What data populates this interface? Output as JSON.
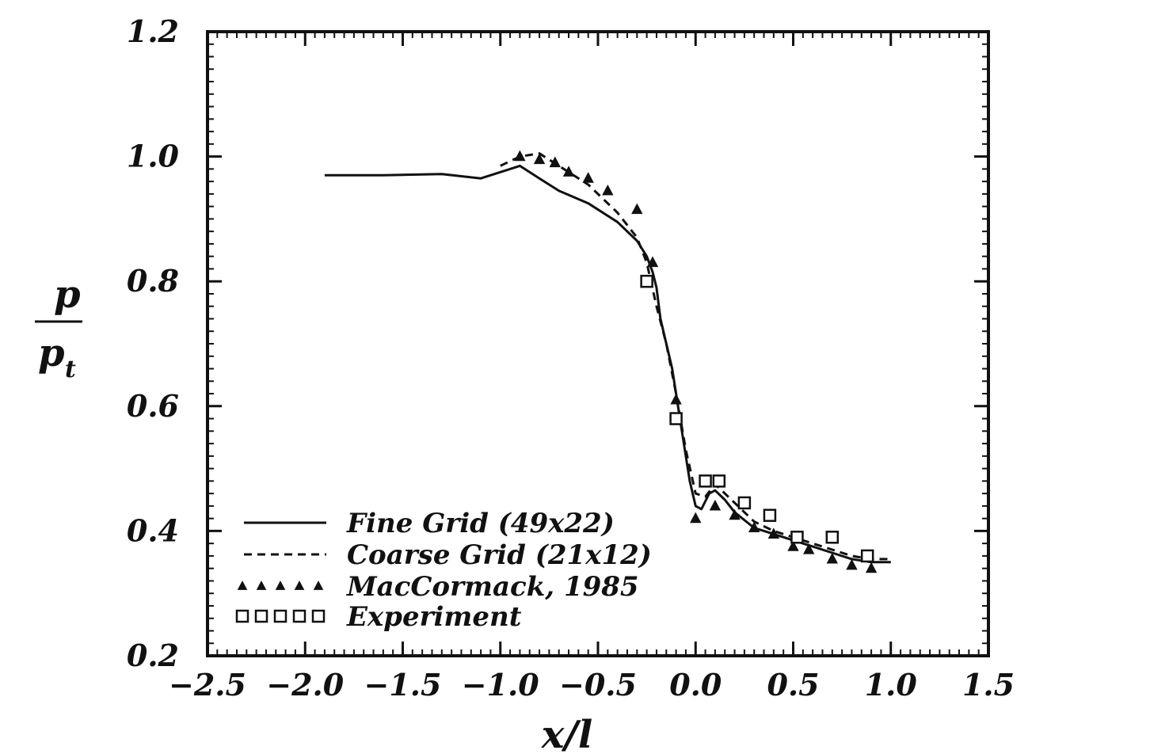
{
  "chart_data": {
    "type": "line",
    "title": "",
    "xlabel": "x/l",
    "ylabel_numerator": "p",
    "ylabel_denominator": "p",
    "ylabel_denominator_subscript": "t",
    "xlim": [
      -2.5,
      1.5
    ],
    "ylim": [
      0.2,
      1.2
    ],
    "xticks": [
      -2.5,
      -2.0,
      -1.5,
      -1.0,
      -0.5,
      0.0,
      0.5,
      1.0,
      1.5
    ],
    "xtick_labels": [
      "−2.5",
      "−2.0",
      "−1.5",
      "−1.0",
      "−0.5",
      "0.0",
      "0.5",
      "1.0",
      "1.5"
    ],
    "yticks": [
      0.2,
      0.4,
      0.6,
      0.8,
      1.0,
      1.2
    ],
    "ytick_labels": [
      "0.2",
      "0.4",
      "0.6",
      "0.8",
      "1.0",
      "1.2"
    ],
    "grid": false,
    "legend_position": "bottom-left",
    "series": [
      {
        "name": "Fine Grid (49x22)",
        "style": "solid",
        "x": [
          -1.9,
          -1.6,
          -1.3,
          -1.1,
          -1.0,
          -0.9,
          -0.8,
          -0.7,
          -0.55,
          -0.4,
          -0.3,
          -0.25,
          -0.22,
          -0.2,
          -0.18,
          -0.15,
          -0.12,
          -0.1,
          -0.08,
          -0.05,
          -0.03,
          0.0,
          0.03,
          0.07,
          0.1,
          0.15,
          0.2,
          0.3,
          0.4,
          0.5,
          0.6,
          0.7,
          0.8,
          0.9,
          1.0
        ],
        "y": [
          0.97,
          0.97,
          0.972,
          0.965,
          0.975,
          0.985,
          0.965,
          0.945,
          0.925,
          0.895,
          0.865,
          0.84,
          0.815,
          0.79,
          0.74,
          0.7,
          0.66,
          0.62,
          0.58,
          0.52,
          0.48,
          0.44,
          0.435,
          0.46,
          0.465,
          0.45,
          0.43,
          0.405,
          0.395,
          0.385,
          0.375,
          0.365,
          0.355,
          0.35,
          0.35
        ]
      },
      {
        "name": "Coarse Grid (21x12)",
        "style": "dashed",
        "x": [
          -1.0,
          -0.9,
          -0.8,
          -0.7,
          -0.55,
          -0.4,
          -0.3,
          -0.25,
          -0.2,
          -0.15,
          -0.1,
          -0.05,
          0.0,
          0.05,
          0.1,
          0.2,
          0.3,
          0.4,
          0.5,
          0.6,
          0.7,
          0.8,
          0.9,
          1.0
        ],
        "y": [
          0.985,
          1.0,
          1.005,
          0.985,
          0.955,
          0.91,
          0.87,
          0.83,
          0.76,
          0.7,
          0.62,
          0.53,
          0.46,
          0.455,
          0.475,
          0.445,
          0.415,
          0.4,
          0.39,
          0.38,
          0.37,
          0.36,
          0.355,
          0.355
        ]
      },
      {
        "name": "MacCormack, 1985",
        "style": "marker-triangle",
        "x": [
          -0.9,
          -0.8,
          -0.72,
          -0.65,
          -0.55,
          -0.45,
          -0.3,
          -0.22,
          -0.1,
          0.0,
          0.1,
          0.2,
          0.3,
          0.4,
          0.5,
          0.58,
          0.7,
          0.8,
          0.9
        ],
        "y": [
          1.0,
          0.995,
          0.99,
          0.975,
          0.965,
          0.945,
          0.915,
          0.83,
          0.61,
          0.42,
          0.44,
          0.425,
          0.405,
          0.395,
          0.375,
          0.37,
          0.355,
          0.345,
          0.34
        ]
      },
      {
        "name": "Experiment",
        "style": "marker-square",
        "x": [
          -0.25,
          -0.1,
          0.05,
          0.12,
          0.25,
          0.38,
          0.52,
          0.7,
          0.88
        ],
        "y": [
          0.8,
          0.58,
          0.48,
          0.48,
          0.445,
          0.425,
          0.39,
          0.39,
          0.36
        ]
      }
    ]
  }
}
